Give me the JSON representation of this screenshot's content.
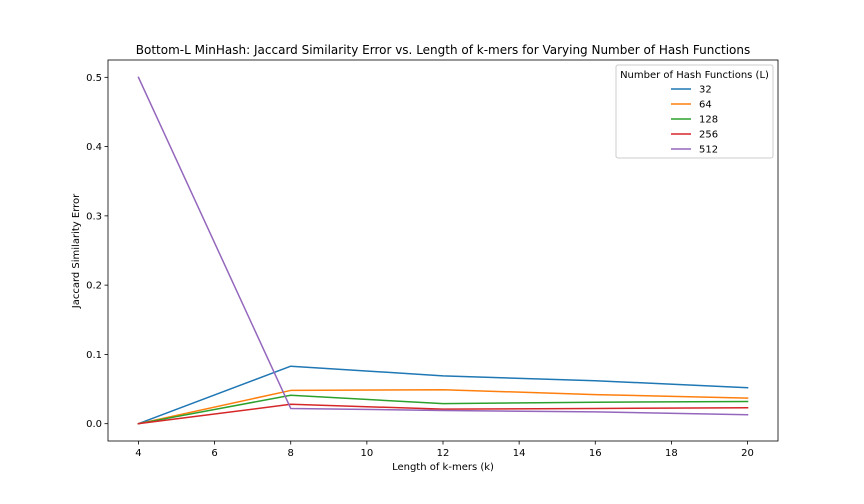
{
  "chart_data": {
    "type": "line",
    "title": "Bottom-L MinHash: Jaccard Similarity Error vs. Length of k-mers for Varying Number of Hash Functions",
    "xlabel": "Length of k-mers (k)",
    "ylabel": "Jaccard Similarity Error",
    "xlim": [
      3.2,
      20.8
    ],
    "ylim": [
      -0.025,
      0.525
    ],
    "x_ticks": [
      4,
      6,
      8,
      10,
      12,
      14,
      16,
      18,
      20
    ],
    "y_ticks": [
      0.0,
      0.1,
      0.2,
      0.3,
      0.4,
      0.5
    ],
    "x_tick_labels": [
      "4",
      "6",
      "8",
      "10",
      "12",
      "14",
      "16",
      "18",
      "20"
    ],
    "y_tick_labels": [
      "0.0",
      "0.1",
      "0.2",
      "0.3",
      "0.4",
      "0.5"
    ],
    "grid": false,
    "legend": {
      "title": "Number of Hash Functions (L)",
      "placement": "top-right"
    },
    "x": [
      4,
      8,
      12,
      16,
      20
    ],
    "series": [
      {
        "name": "32",
        "color": "#1f77b4",
        "values": [
          0.0,
          0.083,
          0.069,
          0.062,
          0.052
        ]
      },
      {
        "name": "64",
        "color": "#ff7f0e",
        "values": [
          0.0,
          0.048,
          0.049,
          0.042,
          0.037
        ]
      },
      {
        "name": "128",
        "color": "#2ca02c",
        "values": [
          0.0,
          0.041,
          0.029,
          0.031,
          0.032
        ]
      },
      {
        "name": "256",
        "color": "#d62728",
        "values": [
          0.0,
          0.028,
          0.021,
          0.022,
          0.023
        ]
      },
      {
        "name": "512",
        "color": "#9467bd",
        "values": [
          0.5,
          0.022,
          0.019,
          0.017,
          0.013
        ]
      }
    ]
  }
}
